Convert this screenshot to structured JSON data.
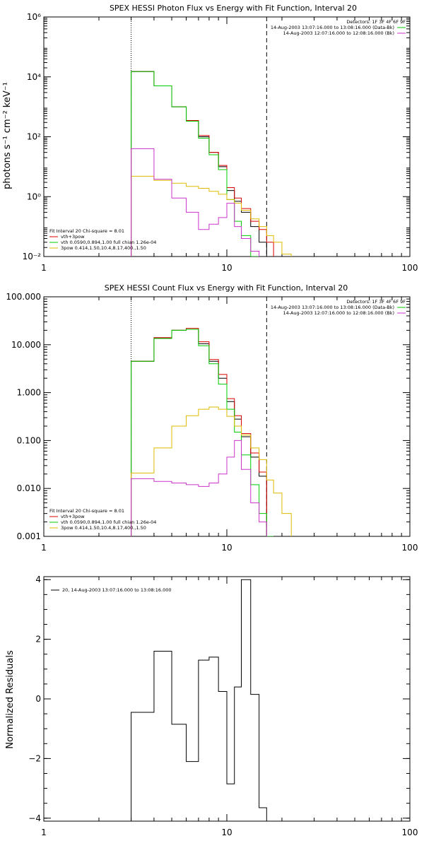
{
  "chart_data": [
    {
      "type": "line",
      "title": "SPEX HESSI Photon Flux vs Energy with Fit Function, Interval 20",
      "xlabel": "",
      "ylabel": "photons s⁻¹ cm⁻² keV⁻¹",
      "x_scale": "log",
      "y_scale": "log",
      "xlim": [
        1,
        100
      ],
      "ylim": [
        0.01,
        1000000
      ],
      "x_ticks": [
        {
          "value": 1,
          "label": "1"
        },
        {
          "value": 10,
          "label": "10"
        },
        {
          "value": 100,
          "label": "100"
        }
      ],
      "y_ticks": [
        {
          "value": 0.01,
          "label": "10⁻²"
        },
        {
          "value": 1,
          "label": "10⁰"
        },
        {
          "value": 100,
          "label": "10²"
        },
        {
          "value": 10000,
          "label": "10⁴"
        },
        {
          "value": 1000000,
          "label": "10⁶"
        }
      ],
      "vlines": [
        {
          "x": 3.0,
          "style": "dotted"
        },
        {
          "x": 16.5,
          "style": "dashed"
        }
      ],
      "legend_top_right": {
        "header": "Detectors: 1F 3F 4F 6F 9F",
        "entries": [
          {
            "text": "14-Aug-2003 13:07:16.000 to 13:08:16.000 (Data-Bk)",
            "color": "#00cc00"
          },
          {
            "text": "14-Aug-2003 12:07:16.000 to 12:08:16.000 (Bk)",
            "color": "#cc33cc"
          }
        ]
      },
      "legend_bottom_left": {
        "header": "Fit Interval 20   Chi-square = 8.01",
        "entries": [
          {
            "text": "vth+3pow",
            "color": "#dd0000"
          },
          {
            "text": "vth 0.0590,0.894,1.00  full chian 1.26e-04",
            "color": "#00cc00"
          },
          {
            "text": "3pow 0.414,1.50,10.4,8.17,400.,1.50",
            "color": "#ddbb00"
          }
        ]
      },
      "bin_edges": [
        3.0,
        4.0,
        5.0,
        6.0,
        7.0,
        8.0,
        9.0,
        10.0,
        11.0,
        12.0,
        13.5,
        15.0,
        16.5,
        18.0,
        20.0,
        22.5
      ],
      "series": [
        {
          "color": "#000000",
          "values": [
            15000,
            5000,
            1000,
            350,
            100,
            30,
            10,
            1.6,
            0.7,
            0.3,
            0.1,
            0.03,
            null,
            null,
            null
          ]
        },
        {
          "color": "#dd0000",
          "values": [
            15000,
            5000,
            1000,
            350,
            110,
            30,
            11,
            2.0,
            0.9,
            0.4,
            0.15,
            0.08,
            0.03,
            null,
            null
          ]
        },
        {
          "color": "#00cc00",
          "values": [
            15000,
            5000,
            1000,
            330,
            90,
            25,
            8,
            0.8,
            0.15,
            0.05,
            0.01,
            null,
            null,
            null,
            null
          ]
        },
        {
          "color": "#ddbb00",
          "values": [
            4.8,
            3.5,
            2.8,
            2.2,
            1.9,
            1.5,
            1.2,
            0.8,
            0.6,
            0.35,
            0.18,
            0.1,
            0.05,
            0.03,
            0.012
          ]
        },
        {
          "color": "#cc33cc",
          "values": [
            40,
            3.8,
            0.9,
            0.3,
            0.08,
            0.12,
            0.2,
            0.6,
            0.1,
            0.04,
            0.015,
            null,
            null,
            null,
            null
          ]
        }
      ]
    },
    {
      "type": "line",
      "title": "SPEX HESSI Count Flux vs Energy with Fit Function, Interval 20",
      "xlabel": "",
      "ylabel": "",
      "x_scale": "log",
      "y_scale": "log",
      "xlim": [
        1,
        100
      ],
      "ylim": [
        0.001,
        100
      ],
      "x_ticks": [
        {
          "value": 1,
          "label": "1"
        },
        {
          "value": 10,
          "label": "10"
        },
        {
          "value": 100,
          "label": "100"
        }
      ],
      "y_ticks": [
        {
          "value": 0.001,
          "label": "0.001"
        },
        {
          "value": 0.01,
          "label": "0.010"
        },
        {
          "value": 0.1,
          "label": "0.100"
        },
        {
          "value": 1,
          "label": "1.000"
        },
        {
          "value": 10,
          "label": "10.000"
        },
        {
          "value": 100,
          "label": "100.000"
        }
      ],
      "vlines": [
        {
          "x": 3.0,
          "style": "dotted"
        },
        {
          "x": 16.5,
          "style": "dashed"
        }
      ],
      "legend_top_right": {
        "header": "Detectors: 1F 3F 4F 6F 9F",
        "entries": [
          {
            "text": "14-Aug-2003 13:07:16.000 to 13:08:16.000 (Data-Bk)",
            "color": "#00cc00"
          },
          {
            "text": "14-Aug-2003 12:07:16.000 to 12:08:16.000 (Bk)",
            "color": "#cc33cc"
          }
        ]
      },
      "legend_bottom_left": {
        "header": "Fit Interval 20   Chi-square = 8.01",
        "entries": [
          {
            "text": "vth+3pow",
            "color": "#dd0000"
          },
          {
            "text": "vth 0.0590,0.894,1.00  full chian 1.26e-04",
            "color": "#00cc00"
          },
          {
            "text": "3pow 0.414,1.50,10.4,8.17,400.,1.50",
            "color": "#ddbb00"
          }
        ]
      },
      "bin_edges": [
        3.0,
        4.0,
        5.0,
        6.0,
        7.0,
        8.0,
        9.0,
        10.0,
        11.0,
        12.0,
        13.5,
        15.0,
        16.5,
        18.0,
        20.0,
        22.5
      ],
      "series": [
        {
          "color": "#000000",
          "values": [
            4.5,
            14,
            20,
            21,
            10.5,
            4.5,
            2.0,
            0.65,
            0.28,
            0.12,
            0.045,
            0.018,
            null,
            null,
            null
          ]
        },
        {
          "color": "#dd0000",
          "values": [
            4.5,
            14,
            20,
            22,
            11.5,
            4.9,
            2.4,
            0.75,
            0.33,
            0.14,
            0.055,
            0.022,
            null,
            null,
            null
          ]
        },
        {
          "color": "#00cc00",
          "values": [
            4.5,
            13.5,
            20,
            21,
            9.5,
            4.0,
            1.5,
            0.45,
            0.15,
            0.05,
            0.012,
            0.003,
            0.001,
            null,
            null
          ]
        },
        {
          "color": "#ddbb00",
          "values": [
            0.021,
            0.07,
            0.2,
            0.33,
            0.45,
            0.5,
            0.45,
            0.32,
            0.2,
            0.13,
            0.07,
            0.04,
            0.015,
            0.008,
            0.003
          ]
        },
        {
          "color": "#cc33cc",
          "values": [
            0.016,
            0.014,
            0.013,
            0.012,
            0.011,
            0.013,
            0.02,
            0.045,
            0.1,
            0.025,
            0.005,
            0.002,
            null,
            null,
            null
          ]
        }
      ]
    },
    {
      "type": "line",
      "title": "",
      "xlabel": "",
      "ylabel": "Normalized Residuals",
      "x_scale": "log",
      "y_scale": "linear",
      "xlim": [
        1,
        100
      ],
      "ylim": [
        -4.1,
        4.1
      ],
      "x_ticks": [
        {
          "value": 1,
          "label": "1"
        },
        {
          "value": 10,
          "label": "10"
        },
        {
          "value": 100,
          "label": "100"
        }
      ],
      "y_ticks": [
        {
          "value": -4,
          "label": "−4"
        },
        {
          "value": -2,
          "label": "−2"
        },
        {
          "value": 0,
          "label": "0"
        },
        {
          "value": 2,
          "label": "2"
        },
        {
          "value": 4,
          "label": "4"
        }
      ],
      "legend_top_left": {
        "entries": [
          {
            "text": "20, 14-Aug-2003 13:07:16.000 to 13:08:16.000",
            "color": "#000000"
          }
        ]
      },
      "bin_edges": [
        3.0,
        4.0,
        5.0,
        6.0,
        7.0,
        8.0,
        9.0,
        10.0,
        11.0,
        12.0,
        13.5,
        15.0,
        16.5
      ],
      "series": [
        {
          "color": "#000000",
          "values": [
            -0.45,
            1.6,
            -0.85,
            -2.1,
            1.3,
            1.4,
            0.25,
            -2.85,
            0.4,
            4.0,
            0.15,
            -3.65
          ]
        }
      ]
    }
  ]
}
